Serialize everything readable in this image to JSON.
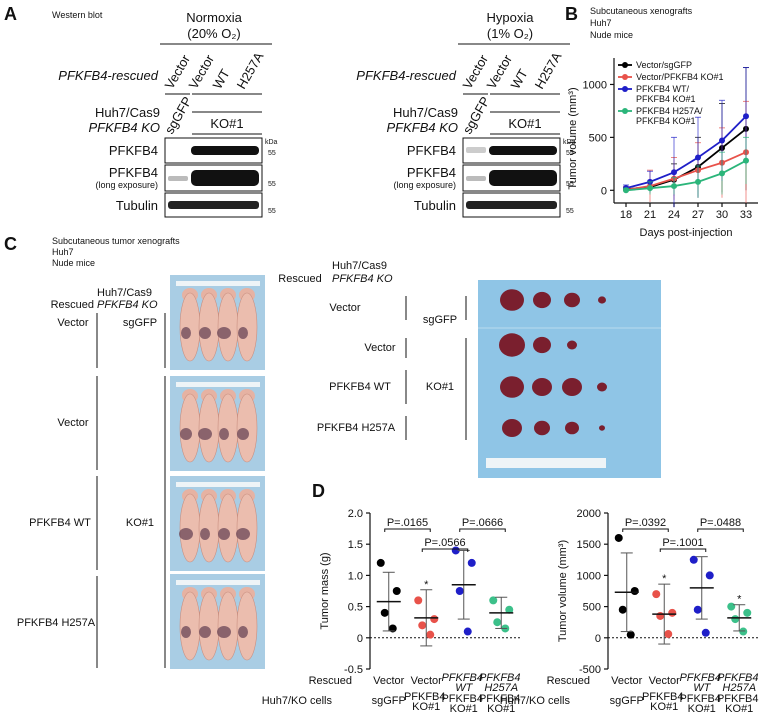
{
  "figure": {
    "panel_labels": {
      "a": "A",
      "b": "B",
      "c": "C",
      "d": "D"
    },
    "western": {
      "header": "Western blot",
      "conditions": [
        {
          "name": "Normoxia",
          "oxygen": "(20% O₂)"
        },
        {
          "name": "Hypoxia",
          "oxygen": "(1% O₂)"
        }
      ],
      "rescued_label": "PFKFB4-rescued",
      "lanes": [
        "Vector",
        "Vector",
        "WT",
        "H257A"
      ],
      "cells_label": [
        "Huh7/Cas9",
        "PFKFB4 KO"
      ],
      "sg": "sgGFP",
      "ko": "KO#1",
      "blots": [
        "PFKFB4",
        "PFKFB4",
        "Tubulin"
      ],
      "blot_note": "(long exposure)",
      "kda": "kDa",
      "marker": "55"
    },
    "xenograft_photos": {
      "title": [
        "Subcutaneous tumor xenografts",
        "Huh7",
        "Nude mice"
      ],
      "rescued_label": "Rescued",
      "cells_label": [
        "Huh7/Cas9",
        "PFKFB4 KO"
      ],
      "rows": [
        "Vector",
        "Vector",
        "PFKFB4 WT",
        "PFKFB4 H257A"
      ],
      "sg": "sgGFP",
      "ko": "KO#1"
    }
  },
  "chart_data": [
    {
      "type": "line",
      "subtitle": [
        "Subcutaneous xenografts",
        "Huh7",
        "Nude mice"
      ],
      "x_label": "Days post-injection",
      "y_label": "Tumor volume (mm³)",
      "x": [
        18,
        21,
        24,
        27,
        30,
        33
      ],
      "xlim": [
        16.5,
        34.5
      ],
      "xticks": [
        18,
        21,
        24,
        27,
        30,
        33
      ],
      "ylim": [
        -120,
        1250
      ],
      "yticks": [
        0,
        500,
        1000
      ],
      "legend": "upper left",
      "series": [
        {
          "name": "Vector/sgGFP",
          "color": "#000000",
          "values": [
            10,
            30,
            100,
            220,
            400,
            580
          ],
          "errors": [
            20,
            50,
            150,
            280,
            420,
            580
          ]
        },
        {
          "name": "Vector/PFKFB4 KO#1",
          "color": "#e8524a",
          "values": [
            5,
            40,
            110,
            190,
            260,
            360
          ],
          "errors": [
            30,
            150,
            200,
            260,
            330,
            480
          ]
        },
        {
          "name": "PFKFB4 WT/ PFKFB4 KO#1",
          "color": "#1f1fc8",
          "values": [
            20,
            80,
            170,
            310,
            470,
            700
          ],
          "errors": [
            30,
            100,
            330,
            380,
            380,
            460
          ]
        },
        {
          "name": "PFKFB4 H257A/ PFKFB4 KO#1",
          "color": "#2bb57a",
          "values": [
            0,
            20,
            40,
            80,
            160,
            280
          ],
          "errors": [
            20,
            60,
            80,
            150,
            200,
            220
          ]
        }
      ]
    },
    {
      "type": "dot",
      "y_label": "Tumor mass (g)",
      "categories": [
        "Vector",
        "Vector",
        "PFKFB4 WT",
        "PFKFB4 H257A"
      ],
      "cells": [
        "sgGFP",
        "PFKFB4 KO#1",
        "PFKFB4 KO#1",
        "PFKFB4 KO#1"
      ],
      "row_labels": [
        "Rescued",
        "Huh7/KO cells"
      ],
      "colors": [
        "#000000",
        "#e8524a",
        "#1f1fc8",
        "#3cc08a"
      ],
      "points": [
        [
          1.2,
          0.75,
          0.4,
          0.15
        ],
        [
          0.6,
          0.3,
          0.2,
          0.05
        ],
        [
          1.4,
          1.2,
          0.75,
          0.1
        ],
        [
          0.6,
          0.45,
          0.25,
          0.15
        ]
      ],
      "means": [
        0.58,
        0.32,
        0.85,
        0.4
      ],
      "sds": [
        0.47,
        0.45,
        0.55,
        0.25
      ],
      "ylim": [
        -0.5,
        2
      ],
      "yticks": [
        -0.5,
        0,
        0.5,
        {
          "value": 1,
          "label": "1.0"
        },
        1.5,
        {
          "value": 2,
          "label": "2.0"
        }
      ],
      "significance": [
        null,
        "*",
        null,
        null
      ],
      "p_values": [
        "P=.0165",
        "P=.0566",
        "P=.0666"
      ]
    },
    {
      "type": "dot",
      "y_label": "Tumor volume (mm³)",
      "categories": [
        "Vector",
        "Vector",
        "PFKFB4 WT",
        "PFKFB4 H257A"
      ],
      "cells": [
        "sgGFP",
        "PFKFB4 KO#1",
        "PFKFB4 KO#1",
        "PFKFB4 KO#1"
      ],
      "row_labels": [
        "Rescued",
        "Huh7/KO cells"
      ],
      "colors": [
        "#000000",
        "#e8524a",
        "#1f1fc8",
        "#3cc08a"
      ],
      "points": [
        [
          1600,
          750,
          450,
          50
        ],
        [
          700,
          400,
          350,
          60
        ],
        [
          1250,
          1000,
          450,
          80
        ],
        [
          500,
          400,
          300,
          100
        ]
      ],
      "means": [
        730,
        380,
        800,
        320
      ],
      "sds": [
        630,
        480,
        500,
        210
      ],
      "ylim": [
        -500,
        2000
      ],
      "yticks": [
        -500,
        0,
        500,
        1000,
        1500,
        2000
      ],
      "significance": [
        null,
        "*",
        null,
        "*"
      ],
      "p_values": [
        "P=.0392",
        "P=.1001",
        "P=.0488"
      ]
    }
  ]
}
